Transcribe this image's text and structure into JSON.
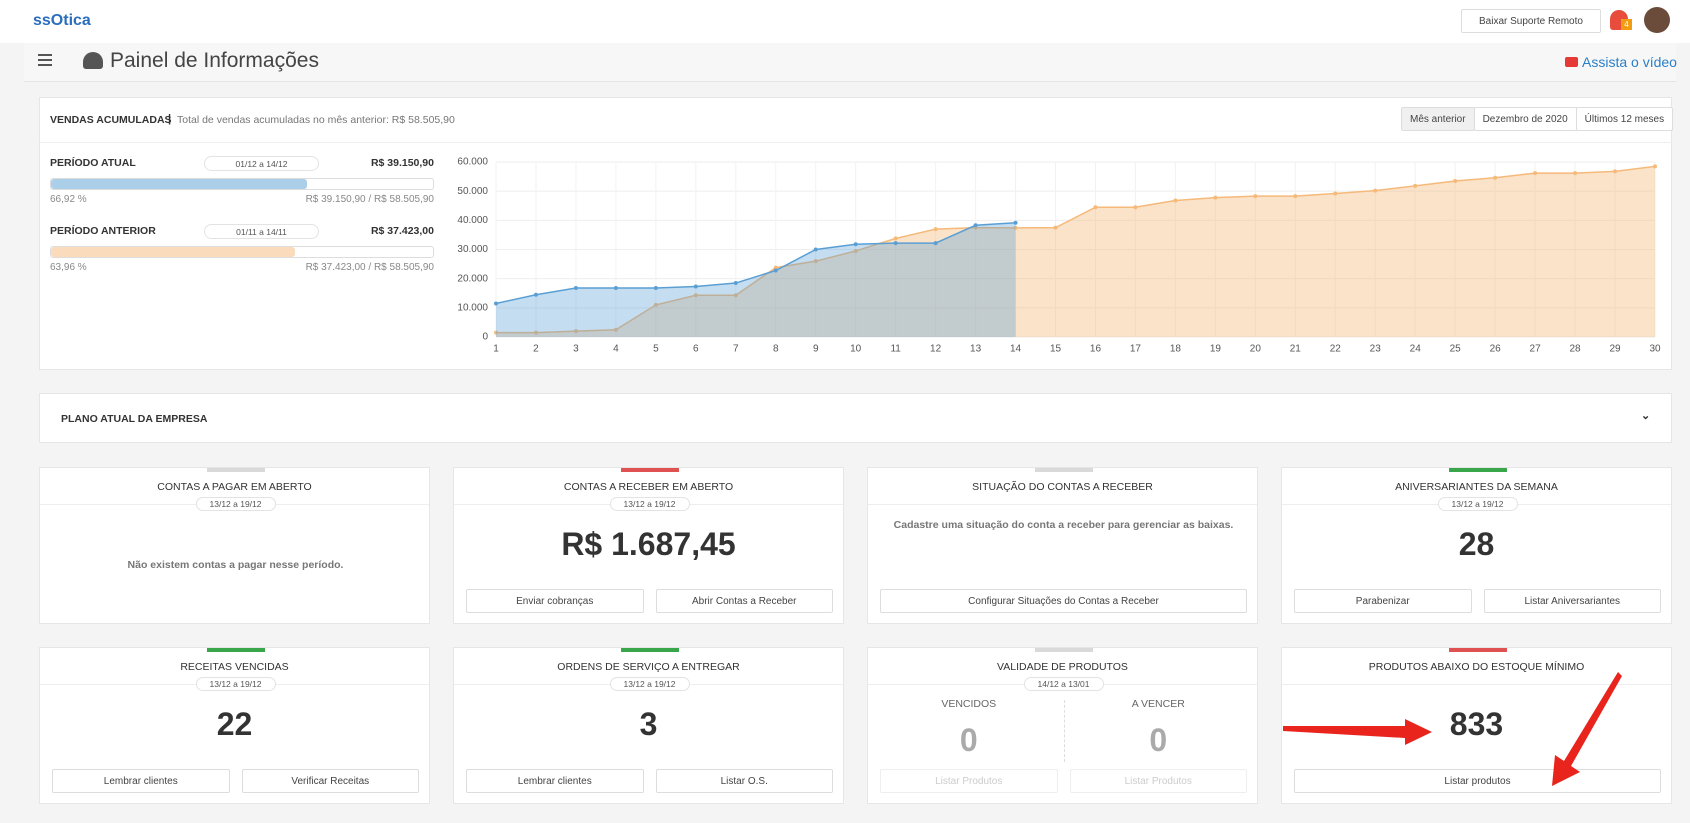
{
  "header": {
    "logo": "ssOtica",
    "remote_support": "Baixar Suporte Remoto",
    "notifications": "4",
    "title": "Painel de Informações",
    "video_link": "Assista o vídeo"
  },
  "sales": {
    "title": "VENDAS ACUMULADAS",
    "subtitle": "Total de vendas acumuladas no mês anterior: R$ 58.505,90",
    "filters": [
      "Mês anterior",
      "Dezembro de 2020",
      "Últimos 12 meses"
    ],
    "periods": [
      {
        "label": "PERÍODO ATUAL",
        "dates": "01/12 a 14/12",
        "total": "R$ 39.150,90",
        "percent": {
          "value": 66.92,
          "label": "66,92 %"
        },
        "ratio": "R$ 39.150,90 / R$ 58.505,90",
        "color": "#5a9fd4"
      },
      {
        "label": "PERÍODO ANTERIOR",
        "dates": "01/11 a 14/11",
        "total": "R$ 37.423,00",
        "percent": {
          "value": 63.96,
          "label": "63,96 %"
        },
        "ratio": "R$ 37.423,00 / R$ 58.505,90",
        "color": "#f5b97a"
      }
    ]
  },
  "chart_data": {
    "type": "area",
    "x": [
      1,
      2,
      3,
      4,
      5,
      6,
      7,
      8,
      9,
      10,
      11,
      12,
      13,
      14,
      15,
      16,
      17,
      18,
      19,
      20,
      21,
      22,
      23,
      24,
      25,
      26,
      27,
      28,
      29,
      30
    ],
    "xlim": [
      1,
      30
    ],
    "xticks": [
      1,
      2,
      3,
      4,
      5,
      6,
      7,
      8,
      9,
      10,
      11,
      12,
      13,
      14,
      15,
      16,
      17,
      18,
      19,
      20,
      21,
      22,
      23,
      24,
      25,
      26,
      27,
      28,
      29,
      30
    ],
    "ylim": [
      0,
      60000
    ],
    "yticks": [
      0,
      {
        "value": 10000,
        "label": "10.000"
      },
      {
        "value": 20000,
        "label": "20.000"
      },
      {
        "value": 30000,
        "label": "30.000"
      },
      {
        "value": 40000,
        "label": "40.000"
      },
      {
        "value": 50000,
        "label": "50.000"
      },
      {
        "value": 60000,
        "label": "60.000"
      }
    ],
    "grid": true,
    "series": [
      {
        "color": "#f5b97a",
        "values": [
          1500,
          1500,
          2000,
          2500,
          11000,
          14300,
          14300,
          23800,
          26000,
          29500,
          33800,
          37000,
          37500,
          37423,
          37500,
          44500,
          44500,
          46800,
          47800,
          48300,
          48300,
          49200,
          50200,
          51800,
          53500,
          54600,
          56200,
          56200,
          56800,
          58505.9
        ]
      },
      {
        "color": "#5a9fd4",
        "values": [
          11500,
          14500,
          16800,
          16800,
          16800,
          17300,
          18500,
          22800,
          30000,
          31800,
          32200,
          32200,
          38300,
          39150.9,
          null,
          null,
          null,
          null,
          null,
          null,
          null,
          null,
          null,
          null,
          null,
          null,
          null,
          null,
          null,
          null
        ]
      }
    ]
  },
  "plan": {
    "title": "PLANO ATUAL DA EMPRESA"
  },
  "cards": [
    {
      "title": "CONTAS A PAGAR EM ABERTO",
      "accent": "#d9d9d9",
      "dates": "13/12 a 19/12",
      "message": "Não existem contas a pagar nesse período."
    },
    {
      "title": "CONTAS A RECEBER EM ABERTO",
      "accent": "#e05252",
      "dates": "13/12 a 19/12",
      "value": "R$ 1.687,45",
      "buttons": [
        "Enviar cobranças",
        "Abrir Contas a Receber"
      ]
    },
    {
      "title": "SITUAÇÃO DO CONTAS A RECEBER",
      "accent": "#d9d9d9",
      "message": "Cadastre uma situação do conta a receber para gerenciar as baixas.",
      "buttons": [
        "Configurar Situações do Contas a Receber"
      ]
    },
    {
      "title": "ANIVERSARIANTES DA SEMANA",
      "accent": "#3aa64c",
      "dates": "13/12 a 19/12",
      "value": 28,
      "buttons": [
        "Parabenizar",
        "Listar Aniversariantes"
      ]
    },
    {
      "title": "RECEITAS VENCIDAS",
      "accent": "#3aa64c",
      "dates": "13/12 a 19/12",
      "value": 22,
      "buttons": [
        "Lembrar clientes",
        "Verificar Receitas"
      ]
    },
    {
      "title": "ORDENS DE SERVIÇO A ENTREGAR",
      "accent": "#3aa64c",
      "dates": "13/12 a 19/12",
      "value": 3,
      "buttons": [
        "Lembrar clientes",
        "Listar O.S."
      ]
    },
    {
      "title": "VALIDADE DE PRODUTOS",
      "accent": "#d9d9d9",
      "dates": "14/12 a 13/01",
      "split": [
        {
          "label": "VENCIDOS",
          "value": 0,
          "button": "Listar Produtos"
        },
        {
          "label": "A VENCER",
          "value": 0,
          "button": "Listar Produtos"
        }
      ]
    },
    {
      "title": "PRODUTOS ABAIXO DO ESTOQUE MÍNIMO",
      "accent": "#e05252",
      "value": 833,
      "buttons": [
        "Listar produtos"
      ]
    }
  ]
}
